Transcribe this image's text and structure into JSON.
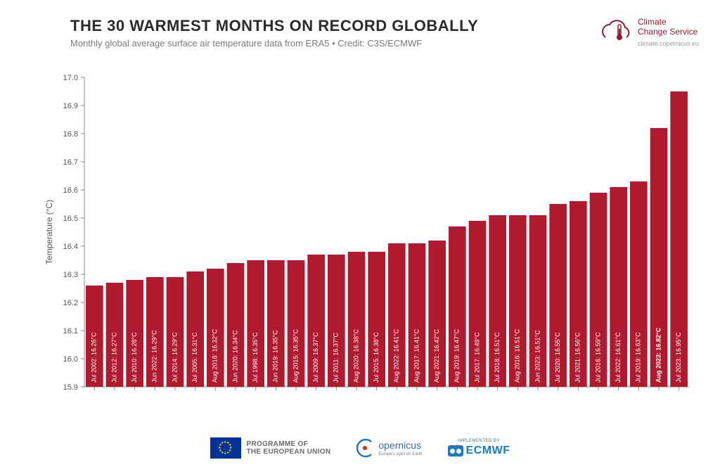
{
  "header": {
    "title": "THE 30 WARMEST MONTHS ON RECORD GLOBALLY",
    "subtitle": "Monthly global average surface air temperature data from ERA5  •  Credit: C3S/ECMWF"
  },
  "logo": {
    "line1": "Climate",
    "line2": "Change Service",
    "url": "climate.copernicus.eu",
    "color": "#941a2d"
  },
  "chart": {
    "type": "bar",
    "ylabel": "Temperature (°C)",
    "label_fontsize": 12,
    "ylim": [
      15.9,
      17.0
    ],
    "ytick_step": 0.1,
    "background_color": "#ffffff",
    "axis_color": "#888888",
    "axis_text_color": "#555555",
    "grid_on": false,
    "bar_color": "#b01a2f",
    "bar_label_color": "#ffffff",
    "bar_label_fontsize": 9,
    "bar_gap_ratio": 0.14,
    "highlight_index": 28,
    "highlight_font_weight": "bold",
    "data": [
      {
        "label": "Jul 2002",
        "value": 16.26
      },
      {
        "label": "Jul 2012",
        "value": 16.27
      },
      {
        "label": "Jul 2010",
        "value": 16.28
      },
      {
        "label": "Jun 2022",
        "value": 16.29
      },
      {
        "label": "Jul 2014",
        "value": 16.29
      },
      {
        "label": "Jul 2005",
        "value": 16.31
      },
      {
        "label": "Aug 2018",
        "value": 16.32
      },
      {
        "label": "Jun 2020",
        "value": 16.34
      },
      {
        "label": "Jul 1998",
        "value": 16.35
      },
      {
        "label": "Jun 2019",
        "value": 16.35
      },
      {
        "label": "Aug 2015",
        "value": 16.35
      },
      {
        "label": "Jul 2009",
        "value": 16.37
      },
      {
        "label": "Jul 2011",
        "value": 16.37
      },
      {
        "label": "Aug 2020",
        "value": 16.38
      },
      {
        "label": "Jul 2015",
        "value": 16.38
      },
      {
        "label": "Aug 2022",
        "value": 16.41
      },
      {
        "label": "Aug 2017",
        "value": 16.41
      },
      {
        "label": "Aug 2021",
        "value": 16.42
      },
      {
        "label": "Aug 2019",
        "value": 16.47
      },
      {
        "label": "Jul 2017",
        "value": 16.49
      },
      {
        "label": "Jul 2018",
        "value": 16.51
      },
      {
        "label": "Aug 2016",
        "value": 16.51
      },
      {
        "label": "Jun 2023",
        "value": 16.51
      },
      {
        "label": "Jul 2020",
        "value": 16.55
      },
      {
        "label": "Jul 2021",
        "value": 16.56
      },
      {
        "label": "Jul 2016",
        "value": 16.59
      },
      {
        "label": "Jul 2022",
        "value": 16.61
      },
      {
        "label": "Jul 2019",
        "value": 16.63
      },
      {
        "label": "Aug 2023",
        "value": 16.82
      },
      {
        "label": "Jul 2023",
        "value": 16.95
      }
    ]
  },
  "footer": {
    "eu_label_1": "PROGRAMME OF",
    "eu_label_2": "THE EUROPEAN UNION",
    "copernicus_name": "opernicus",
    "copernicus_tagline": "Europe's eyes on Earth",
    "ecmwf_implemented": "IMPLEMENTED BY",
    "ecmwf_name": "ECMWF"
  }
}
